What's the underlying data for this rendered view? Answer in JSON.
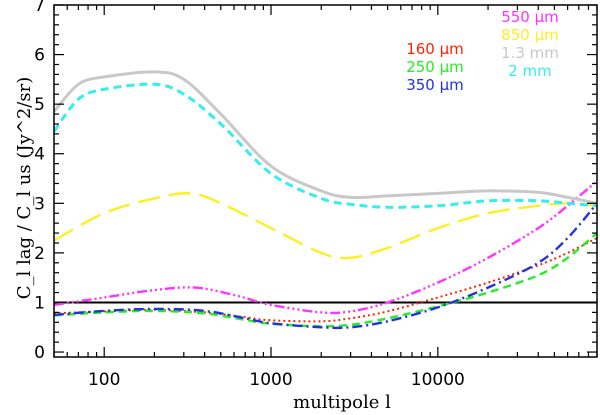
{
  "chart_data": {
    "type": "line",
    "title": "",
    "xlabel": "multipole l",
    "ylabel": "C_l lag / C_l us (Jy^2/sr)",
    "xscale": "log",
    "xlim": [
      50,
      90000
    ],
    "ylim": [
      -0.1,
      7
    ],
    "x_ticks": [
      {
        "value": 100,
        "label": "100"
      },
      {
        "value": 1000,
        "label": "1000"
      },
      {
        "value": 10000,
        "label": "10000"
      }
    ],
    "y_ticks": [
      {
        "value": 0,
        "label": "0"
      },
      {
        "value": 1,
        "label": "1"
      },
      {
        "value": 2,
        "label": "2"
      },
      {
        "value": 3,
        "label": "3"
      },
      {
        "value": 4,
        "label": "4"
      },
      {
        "value": 5,
        "label": "5"
      },
      {
        "value": 6,
        "label": "6"
      },
      {
        "value": 7,
        "label": "7"
      }
    ],
    "reference_line": {
      "y": 1,
      "color": "#000000"
    },
    "series": [
      {
        "name": "160 μm",
        "color": "#ff2200",
        "dash": "2 3",
        "width": 2,
        "points": [
          [
            50,
            0.78
          ],
          [
            100,
            0.82
          ],
          [
            200,
            0.85
          ],
          [
            400,
            0.8
          ],
          [
            700,
            0.7
          ],
          [
            1000,
            0.64
          ],
          [
            2000,
            0.62
          ],
          [
            3000,
            0.68
          ],
          [
            5000,
            0.82
          ],
          [
            10000,
            1.1
          ],
          [
            20000,
            1.4
          ],
          [
            40000,
            1.75
          ],
          [
            60000,
            2.0
          ],
          [
            90000,
            2.3
          ]
        ]
      },
      {
        "name": "250 μm",
        "color": "#22ee22",
        "dash": "8 5",
        "width": 2.4,
        "points": [
          [
            50,
            0.74
          ],
          [
            100,
            0.8
          ],
          [
            200,
            0.83
          ],
          [
            400,
            0.78
          ],
          [
            700,
            0.65
          ],
          [
            1000,
            0.57
          ],
          [
            2000,
            0.52
          ],
          [
            3000,
            0.55
          ],
          [
            5000,
            0.68
          ],
          [
            10000,
            0.92
          ],
          [
            20000,
            1.2
          ],
          [
            40000,
            1.55
          ],
          [
            60000,
            1.9
          ],
          [
            90000,
            2.4
          ]
        ]
      },
      {
        "name": "350 μm",
        "color": "#2233dd",
        "dash": "10 4 2 4",
        "width": 2.4,
        "points": [
          [
            50,
            0.75
          ],
          [
            100,
            0.83
          ],
          [
            200,
            0.87
          ],
          [
            400,
            0.83
          ],
          [
            700,
            0.68
          ],
          [
            1000,
            0.58
          ],
          [
            2000,
            0.5
          ],
          [
            3000,
            0.5
          ],
          [
            5000,
            0.62
          ],
          [
            10000,
            0.9
          ],
          [
            20000,
            1.3
          ],
          [
            40000,
            1.8
          ],
          [
            60000,
            2.3
          ],
          [
            90000,
            3.0
          ]
        ]
      },
      {
        "name": "550 μm",
        "color": "#ff33ff",
        "dash": "10 3 2 3 2 3 2 3",
        "width": 2.4,
        "points": [
          [
            50,
            0.95
          ],
          [
            100,
            1.1
          ],
          [
            200,
            1.25
          ],
          [
            350,
            1.3
          ],
          [
            600,
            1.15
          ],
          [
            1000,
            0.95
          ],
          [
            2000,
            0.8
          ],
          [
            3000,
            0.82
          ],
          [
            5000,
            1.0
          ],
          [
            10000,
            1.4
          ],
          [
            20000,
            1.9
          ],
          [
            40000,
            2.5
          ],
          [
            60000,
            2.95
          ],
          [
            90000,
            3.45
          ]
        ]
      },
      {
        "name": "850 μm",
        "color": "#ffee22",
        "dash": "22 9",
        "width": 2.4,
        "points": [
          [
            50,
            2.25
          ],
          [
            100,
            2.8
          ],
          [
            200,
            3.1
          ],
          [
            330,
            3.2
          ],
          [
            500,
            3.0
          ],
          [
            1000,
            2.5
          ],
          [
            2000,
            2.0
          ],
          [
            3000,
            1.9
          ],
          [
            5000,
            2.1
          ],
          [
            10000,
            2.5
          ],
          [
            20000,
            2.8
          ],
          [
            40000,
            2.95
          ],
          [
            60000,
            3.0
          ],
          [
            90000,
            2.95
          ]
        ]
      },
      {
        "name": "1.3 mm",
        "color": "#c8c8c8",
        "dash": "",
        "width": 3,
        "points": [
          [
            50,
            4.85
          ],
          [
            70,
            5.4
          ],
          [
            100,
            5.55
          ],
          [
            200,
            5.65
          ],
          [
            300,
            5.5
          ],
          [
            500,
            4.8
          ],
          [
            1000,
            3.75
          ],
          [
            2000,
            3.25
          ],
          [
            3000,
            3.12
          ],
          [
            5000,
            3.15
          ],
          [
            10000,
            3.2
          ],
          [
            20000,
            3.25
          ],
          [
            40000,
            3.22
          ],
          [
            60000,
            3.12
          ],
          [
            90000,
            3.0
          ]
        ]
      },
      {
        "name": "2 mm",
        "color": "#33eeee",
        "dash": "8 5",
        "width": 3,
        "points": [
          [
            50,
            4.45
          ],
          [
            70,
            5.1
          ],
          [
            100,
            5.3
          ],
          [
            200,
            5.4
          ],
          [
            300,
            5.2
          ],
          [
            500,
            4.6
          ],
          [
            1000,
            3.6
          ],
          [
            2000,
            3.1
          ],
          [
            3000,
            2.98
          ],
          [
            5000,
            2.92
          ],
          [
            10000,
            2.95
          ],
          [
            20000,
            3.05
          ],
          [
            40000,
            3.05
          ],
          [
            60000,
            3.0
          ],
          [
            90000,
            2.95
          ]
        ]
      }
    ],
    "legend": {
      "placement": "top-right",
      "columns": [
        [
          "160 μm",
          "250 μm",
          "350 μm"
        ],
        [
          "550 μm",
          "850 μm",
          "1.3 mm",
          "2 mm"
        ]
      ]
    }
  }
}
